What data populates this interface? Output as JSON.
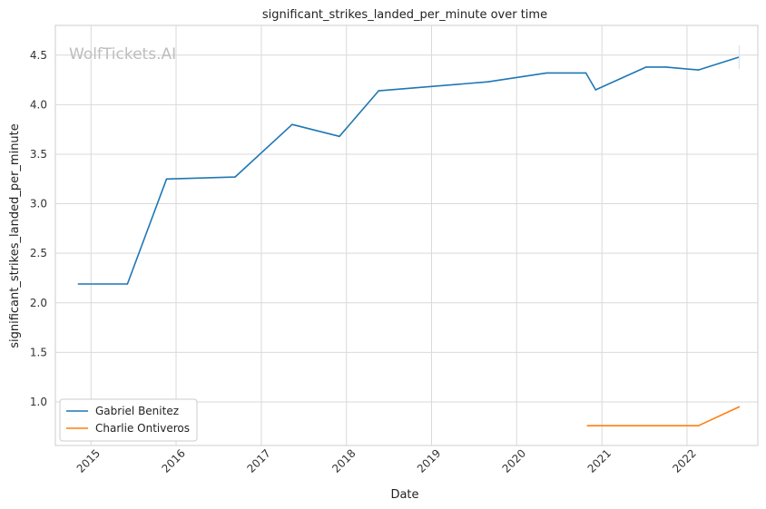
{
  "watermark": "WolfTickets.AI",
  "chart_data": {
    "type": "line",
    "title": "significant_strikes_landed_per_minute over time",
    "xlabel": "Date",
    "ylabel": "significant_strikes_landed_per_minute",
    "xlim": [
      "2014-08-01",
      "2022-11-01"
    ],
    "ylim": [
      0.56,
      4.8
    ],
    "x_ticks": [
      "2015",
      "2016",
      "2017",
      "2018",
      "2019",
      "2020",
      "2021",
      "2022"
    ],
    "y_ticks": [
      "1.0",
      "1.5",
      "2.0",
      "2.5",
      "3.0",
      "3.5",
      "4.0",
      "4.5"
    ],
    "grid": true,
    "legend_position": "lower-left",
    "series": [
      {
        "name": "Gabriel Benitez",
        "color": "#1f77b4",
        "points": [
          [
            "2014-11-08",
            2.19
          ],
          [
            "2015-06-06",
            2.19
          ],
          [
            "2015-11-21",
            3.25
          ],
          [
            "2016-09-10",
            3.27
          ],
          [
            "2017-05-13",
            3.8
          ],
          [
            "2017-12-02",
            3.68
          ],
          [
            "2018-05-19",
            4.14
          ],
          [
            "2019-08-31",
            4.23
          ],
          [
            "2020-05-09",
            4.32
          ],
          [
            "2020-10-24",
            4.32
          ],
          [
            "2020-12-05",
            4.15
          ],
          [
            "2021-07-10",
            4.38
          ],
          [
            "2021-10-02",
            4.38
          ],
          [
            "2022-02-19",
            4.35
          ],
          [
            "2022-08-13",
            4.48
          ]
        ],
        "error_bar": {
          "x": "2022-08-13",
          "low": 4.36,
          "high": 4.6
        }
      },
      {
        "name": "Charlie Ontiveros",
        "color": "#ff7f0e",
        "points": [
          [
            "2020-10-31",
            0.76
          ],
          [
            "2022-02-19",
            0.76
          ],
          [
            "2022-08-13",
            0.95
          ]
        ]
      }
    ]
  }
}
